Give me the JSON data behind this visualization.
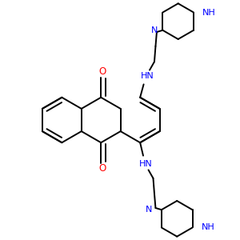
{
  "bg_color": "#ffffff",
  "bond_color": "#000000",
  "N_color": "#0000ff",
  "O_color": "#ff0000",
  "bond_width": 1.4,
  "figsize": [
    3.0,
    3.0
  ],
  "dpi": 100,
  "xlim": [
    0,
    10
  ],
  "ylim": [
    0,
    10
  ]
}
